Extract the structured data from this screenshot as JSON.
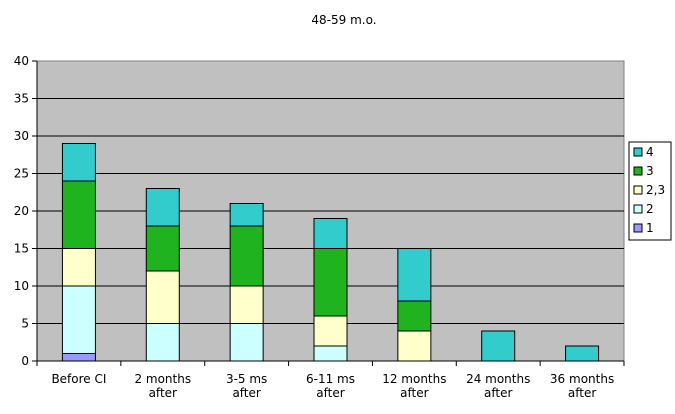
{
  "chart_data": {
    "type": "bar",
    "stacked": true,
    "title": "48-59 m.o.",
    "categories": [
      [
        "Before CI"
      ],
      [
        "2 months",
        "after"
      ],
      [
        "3-5 ms",
        "after"
      ],
      [
        "6-11 ms",
        "after"
      ],
      [
        "12 months",
        "after"
      ],
      [
        "24 months",
        "after"
      ],
      [
        "36 months",
        "after"
      ]
    ],
    "series": [
      {
        "name": "1",
        "color": "#9999ff",
        "values": [
          1,
          0,
          0,
          0,
          0,
          0,
          0
        ]
      },
      {
        "name": "2",
        "color": "#ccffff",
        "values": [
          9,
          5,
          5,
          2,
          0,
          0,
          0
        ]
      },
      {
        "name": "2,3",
        "color": "#ffffcc",
        "values": [
          5,
          7,
          5,
          4,
          4,
          0,
          0
        ]
      },
      {
        "name": "3",
        "color": "#1fb31f",
        "values": [
          9,
          6,
          8,
          9,
          4,
          0,
          0
        ]
      },
      {
        "name": "4",
        "color": "#33cccc",
        "values": [
          5,
          5,
          3,
          4,
          7,
          4,
          2
        ]
      }
    ],
    "ylim": [
      0,
      40
    ],
    "yticks": [
      0,
      5,
      10,
      15,
      20,
      25,
      30,
      35,
      40
    ],
    "grid": true,
    "legend_position": "right",
    "plot_background": "#c0c0c0"
  }
}
